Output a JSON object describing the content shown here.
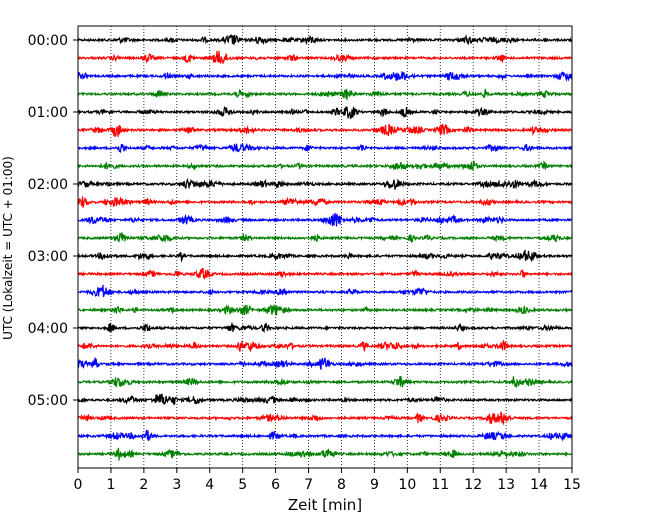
{
  "chart_data": {
    "type": "line",
    "title": "",
    "xlabel": "Zeit  [min]",
    "ylabel": "UTC (Lokalzeit = UTC + 01:00)",
    "xlim": [
      0,
      15
    ],
    "x_ticks": [
      0,
      1,
      2,
      3,
      4,
      5,
      6,
      7,
      8,
      9,
      10,
      11,
      12,
      13,
      14,
      15
    ],
    "y_tick_labels": [
      "00:00",
      "01:00",
      "02:00",
      "03:00",
      "04:00",
      "05:00"
    ],
    "traces_per_hour": 4,
    "trace_count": 24,
    "trace_colors": [
      "#000000",
      "#ff0000",
      "#0000ff",
      "#008000"
    ],
    "grid": "vertical dotted at each minute"
  }
}
